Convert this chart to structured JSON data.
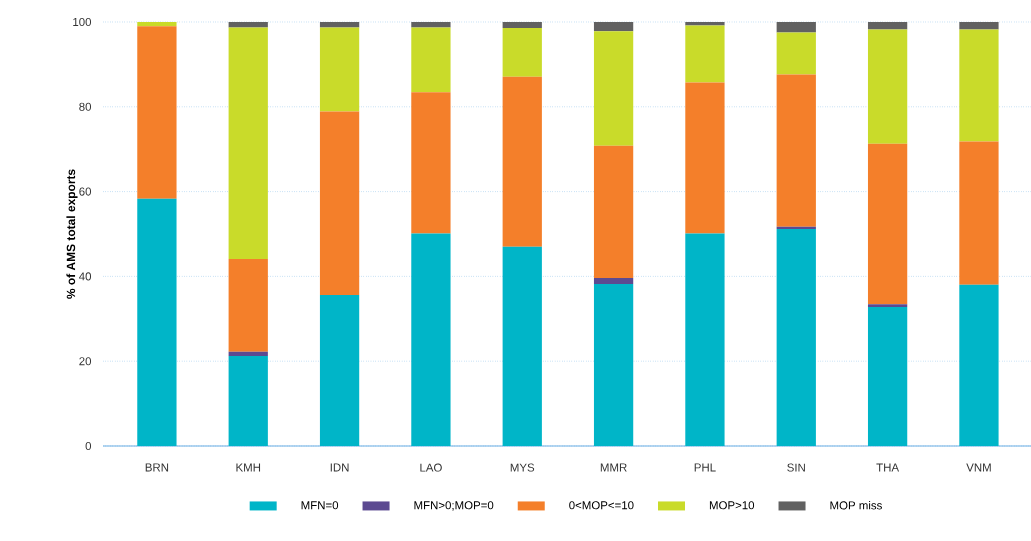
{
  "chart_data": {
    "type": "bar",
    "stacked": true,
    "ylabel": "% of AMS total exports",
    "categories": [
      "BRN",
      "KMH",
      "IDN",
      "LAO",
      "MYS",
      "MMR",
      "PHL",
      "SIN",
      "THA",
      "VNM"
    ],
    "series": [
      {
        "name": "MFN=0",
        "color": "#00b5c8",
        "values": [
          58.3,
          21.2,
          35.6,
          50.1,
          47.0,
          38.2,
          50.1,
          51.2,
          32.8,
          38.0
        ]
      },
      {
        "name": "MFN>0;MOP=0",
        "color": "#5c4a91",
        "values": [
          0,
          1.0,
          0,
          0,
          0,
          1.4,
          0,
          0.5,
          0.6,
          0
        ]
      },
      {
        "name": "0<MOP<=10",
        "color": "#f47f2a",
        "values": [
          40.7,
          21.9,
          43.3,
          33.3,
          40.1,
          31.2,
          35.6,
          35.9,
          37.9,
          33.8
        ]
      },
      {
        "name": "MOP>10",
        "color": "#c9db2a",
        "values": [
          1.0,
          54.6,
          19.8,
          15.3,
          11.5,
          27.0,
          13.5,
          9.9,
          26.9,
          26.4
        ]
      },
      {
        "name": "MOP miss",
        "color": "#616161",
        "values": [
          0,
          1.3,
          1.3,
          1.3,
          1.4,
          2.2,
          0.8,
          2.5,
          1.8,
          1.8
        ]
      }
    ],
    "ylim": [
      0,
      100
    ],
    "yticks": [
      0,
      20,
      40,
      60,
      80,
      100
    ],
    "grid": "y",
    "legend": "bottom"
  }
}
